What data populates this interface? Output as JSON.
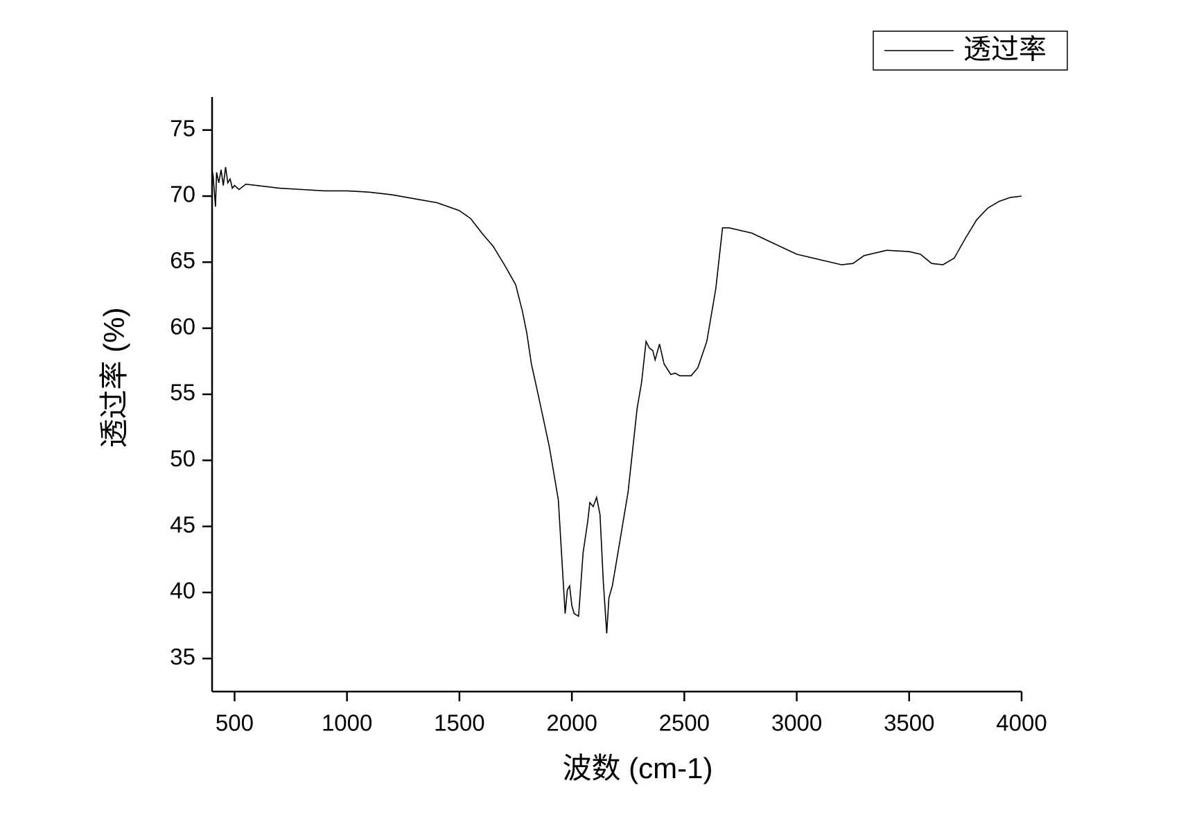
{
  "chart_data": {
    "type": "line",
    "x_label": "波数 (cm-1)",
    "y_label": "透过率 (%)",
    "x": [
      400,
      405,
      415,
      420,
      430,
      440,
      450,
      460,
      470,
      480,
      490,
      500,
      520,
      550,
      600,
      700,
      800,
      900,
      1000,
      1100,
      1200,
      1300,
      1400,
      1500,
      1550,
      1600,
      1650,
      1700,
      1750,
      1780,
      1800,
      1820,
      1850,
      1900,
      1940,
      1960,
      1970,
      1980,
      1990,
      2000,
      2010,
      2030,
      2050,
      2070,
      2080,
      2095,
      2110,
      2125,
      2140,
      2155,
      2165,
      2180,
      2200,
      2250,
      2290,
      2310,
      2330,
      2345,
      2360,
      2370,
      2390,
      2410,
      2440,
      2460,
      2480,
      2530,
      2560,
      2600,
      2640,
      2670,
      2700,
      2800,
      2900,
      3000,
      3100,
      3200,
      3250,
      3300,
      3400,
      3500,
      3550,
      3600,
      3650,
      3700,
      3750,
      3800,
      3850,
      3900,
      3950,
      4000
    ],
    "series": [
      {
        "name": "透过率",
        "color": "#000000",
        "values": [
          72,
          71.5,
          69.2,
          71.8,
          71,
          72,
          70.8,
          72.2,
          71,
          71.3,
          70.6,
          70.8,
          70.5,
          70.9,
          70.8,
          70.6,
          70.5,
          70.4,
          70.4,
          70.3,
          70.1,
          69.8,
          69.5,
          68.9,
          68.3,
          67.2,
          66.2,
          64.8,
          63.3,
          61.3,
          59.6,
          57.3,
          55,
          51,
          47,
          41.3,
          38.4,
          40.2,
          40.5,
          39,
          38.4,
          38.2,
          43,
          45.3,
          46.8,
          46.5,
          47.2,
          45.9,
          40.8,
          36.9,
          39.6,
          40.5,
          42.5,
          47.6,
          53.9,
          55.9,
          59,
          58.5,
          58.3,
          57.6,
          58.8,
          57.3,
          56.5,
          56.6,
          56.4,
          56.4,
          57,
          59,
          63,
          67.6,
          67.6,
          67.2,
          66.4,
          65.6,
          65.2,
          64.8,
          64.9,
          65.5,
          65.9,
          65.8,
          65.6,
          64.9,
          64.8,
          65.3,
          66.8,
          68.2,
          69.1,
          69.6,
          69.9,
          70
        ]
      }
    ],
    "xlim": [
      400,
      4000
    ],
    "ylim": [
      32.5,
      77.5
    ],
    "xticks": [
      500,
      1000,
      1500,
      2000,
      2500,
      3000,
      3500,
      4000
    ],
    "yticks": [
      35,
      40,
      45,
      50,
      55,
      60,
      65,
      70,
      75
    ],
    "legend": "top-right"
  }
}
